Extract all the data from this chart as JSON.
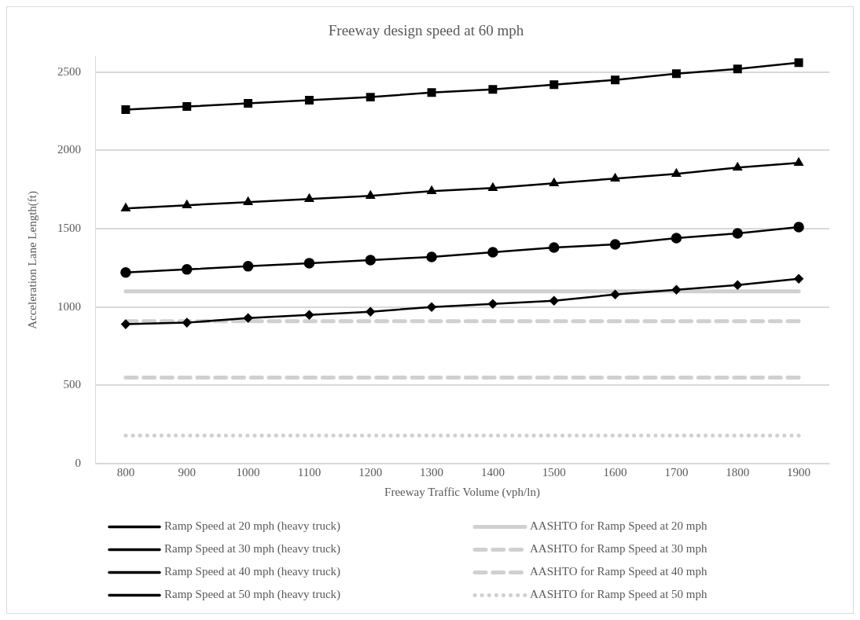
{
  "chart_data": {
    "type": "line",
    "title": "Freeway design speed at 60 mph",
    "xlabel": "Freeway Traffic Volume (vph/ln)",
    "ylabel": "Acceleration Lane Length(ft)",
    "categories": [
      "800",
      "900",
      "1000",
      "1100",
      "1200",
      "1300",
      "1400",
      "1500",
      "1600",
      "1700",
      "1800",
      "1900"
    ],
    "series": [
      {
        "name": "Ramp Speed at 20 mph (heavy truck)",
        "color": "#000000",
        "marker": "square",
        "values": [
          2260,
          2280,
          2300,
          2320,
          2340,
          2370,
          2390,
          2420,
          2450,
          2490,
          2520,
          2560
        ]
      },
      {
        "name": "Ramp Speed at 30 mph (heavy truck)",
        "color": "#000000",
        "marker": "triangle",
        "values": [
          1630,
          1650,
          1670,
          1690,
          1710,
          1740,
          1760,
          1790,
          1820,
          1850,
          1890,
          1920
        ]
      },
      {
        "name": "Ramp Speed at 40 mph (heavy truck)",
        "color": "#000000",
        "marker": "circle",
        "values": [
          1220,
          1240,
          1260,
          1280,
          1300,
          1320,
          1350,
          1380,
          1400,
          1440,
          1470,
          1510
        ]
      },
      {
        "name": "Ramp Speed at 50 mph (heavy truck)",
        "color": "#000000",
        "marker": "diamond",
        "values": [
          890,
          900,
          930,
          950,
          970,
          1000,
          1020,
          1040,
          1080,
          1110,
          1140,
          1180
        ]
      },
      {
        "name": "AASHTO for Ramp Speed at 20 mph",
        "color": "#d0d0d0",
        "marker": "none",
        "line_style": "solid",
        "values": [
          1100,
          1100,
          1100,
          1100,
          1100,
          1100,
          1100,
          1100,
          1100,
          1100,
          1100,
          1100
        ]
      },
      {
        "name": "AASHTO for Ramp Speed at 30 mph",
        "color": "#d0d0d0",
        "marker": "none",
        "line_style": "dashed",
        "values": [
          910,
          910,
          910,
          910,
          910,
          910,
          910,
          910,
          910,
          910,
          910,
          910
        ]
      },
      {
        "name": "AASHTO for Ramp Speed at 40 mph",
        "color": "#d0d0d0",
        "marker": "none",
        "line_style": "dashed",
        "values": [
          550,
          550,
          550,
          550,
          550,
          550,
          550,
          550,
          550,
          550,
          550,
          550
        ]
      },
      {
        "name": "AASHTO for Ramp Speed at 50 mph",
        "color": "#d0d0d0",
        "marker": "none",
        "line_style": "dotted",
        "values": [
          180,
          180,
          180,
          180,
          180,
          180,
          180,
          180,
          180,
          180,
          180,
          180
        ]
      }
    ],
    "ylim": [
      0,
      2600
    ],
    "yticks": [
      0,
      500,
      1000,
      1500,
      2000,
      2500
    ],
    "grid": "y",
    "legend": "bottom"
  }
}
